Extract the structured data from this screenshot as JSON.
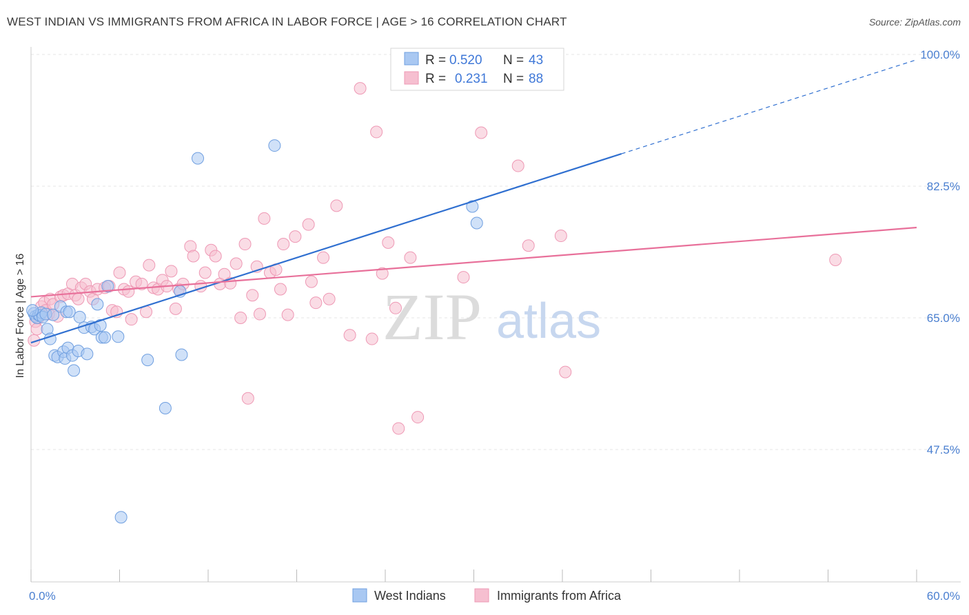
{
  "title": "WEST INDIAN VS IMMIGRANTS FROM AFRICA IN LABOR FORCE | AGE > 16 CORRELATION CHART",
  "source": "Source: ZipAtlas.com",
  "watermark": {
    "zip": "ZIP",
    "atlas": "atlas"
  },
  "colors": {
    "west_indians_fill": "#a9c8f2",
    "west_indians_stroke": "#6f9fe0",
    "west_indians_line": "#2f6fd0",
    "africa_fill": "#f6bfd0",
    "africa_stroke": "#ee98b4",
    "africa_line": "#e8709a",
    "tick_label": "#4a7fd0",
    "grid": "#e6e6e6"
  },
  "legend": {
    "rows": [
      {
        "r_label": "R =",
        "r_value": "0.520",
        "n_label": "N =",
        "n_value": "43"
      },
      {
        "r_label": "R =",
        "r_value": "0.231",
        "n_label": "N =",
        "n_value": "88"
      }
    ]
  },
  "bottom_legend": [
    "West Indians",
    "Immigrants from Africa"
  ],
  "chart_data": {
    "type": "scatter",
    "title": "WEST INDIAN VS IMMIGRANTS FROM AFRICA IN LABOR FORCE | AGE > 16 CORRELATION CHART",
    "xlabel": "",
    "ylabel": "In Labor Force | Age > 16",
    "xlim": [
      0,
      60
    ],
    "ylim": [
      30,
      102
    ],
    "x_tick_labels": [
      "0.0%",
      "60.0%"
    ],
    "y_ticks": [
      47.5,
      65.0,
      82.5,
      100.0
    ],
    "y_tick_labels": [
      "47.5%",
      "65.0%",
      "82.5%",
      "100.0%"
    ],
    "grid": true,
    "legend_position": "top-center",
    "series": [
      {
        "name": "West Indians",
        "points": [
          [
            0.2,
            65.6
          ],
          [
            0.3,
            65.2
          ],
          [
            0.4,
            65.0
          ],
          [
            0.5,
            65.4
          ],
          [
            0.6,
            65.3
          ],
          [
            0.7,
            65.7
          ],
          [
            0.8,
            65.1
          ],
          [
            1.0,
            65.5
          ],
          [
            1.1,
            63.5
          ],
          [
            1.3,
            62.2
          ],
          [
            1.5,
            65.4
          ],
          [
            1.6,
            60.0
          ],
          [
            1.8,
            59.8
          ],
          [
            2.0,
            66.5
          ],
          [
            2.2,
            60.5
          ],
          [
            2.3,
            59.6
          ],
          [
            2.4,
            65.8
          ],
          [
            2.5,
            61.0
          ],
          [
            2.6,
            65.8
          ],
          [
            2.8,
            60.0
          ],
          [
            2.9,
            58.0
          ],
          [
            3.2,
            60.6
          ],
          [
            3.3,
            65.1
          ],
          [
            3.6,
            63.7
          ],
          [
            3.8,
            60.2
          ],
          [
            4.1,
            63.8
          ],
          [
            4.3,
            63.5
          ],
          [
            4.5,
            66.8
          ],
          [
            4.7,
            64.0
          ],
          [
            4.8,
            62.4
          ],
          [
            5.0,
            62.4
          ],
          [
            5.2,
            69.2
          ],
          [
            5.9,
            62.5
          ],
          [
            6.1,
            38.5
          ],
          [
            7.9,
            59.4
          ],
          [
            9.1,
            53.0
          ],
          [
            10.1,
            68.5
          ],
          [
            10.2,
            60.1
          ],
          [
            11.3,
            86.2
          ],
          [
            16.5,
            87.9
          ],
          [
            29.9,
            79.8
          ],
          [
            30.2,
            77.6
          ],
          [
            0.1,
            66.0
          ]
        ]
      },
      {
        "name": "Immigrants from Africa",
        "points": [
          [
            0.2,
            62.0
          ],
          [
            0.3,
            64.5
          ],
          [
            0.4,
            63.5
          ],
          [
            0.5,
            65.0
          ],
          [
            0.7,
            66.5
          ],
          [
            0.9,
            67.0
          ],
          [
            1.0,
            66.0
          ],
          [
            1.2,
            65.5
          ],
          [
            1.3,
            67.5
          ],
          [
            1.5,
            66.8
          ],
          [
            1.8,
            65.2
          ],
          [
            2.0,
            67.8
          ],
          [
            2.2,
            68.0
          ],
          [
            2.5,
            68.2
          ],
          [
            2.8,
            69.5
          ],
          [
            3.0,
            68.0
          ],
          [
            3.2,
            67.5
          ],
          [
            3.4,
            69.0
          ],
          [
            3.7,
            69.5
          ],
          [
            4.0,
            68.5
          ],
          [
            4.2,
            67.5
          ],
          [
            4.5,
            68.8
          ],
          [
            5.0,
            69.0
          ],
          [
            5.3,
            69.2
          ],
          [
            5.5,
            66.0
          ],
          [
            5.8,
            65.8
          ],
          [
            6.0,
            71.0
          ],
          [
            6.3,
            68.8
          ],
          [
            6.6,
            68.5
          ],
          [
            6.8,
            64.8
          ],
          [
            7.1,
            69.8
          ],
          [
            7.5,
            69.5
          ],
          [
            7.8,
            65.8
          ],
          [
            8.0,
            72.0
          ],
          [
            8.3,
            69.0
          ],
          [
            8.6,
            68.8
          ],
          [
            8.9,
            70.0
          ],
          [
            9.2,
            69.2
          ],
          [
            9.5,
            71.2
          ],
          [
            9.8,
            66.2
          ],
          [
            10.0,
            68.8
          ],
          [
            10.3,
            69.5
          ],
          [
            10.8,
            74.5
          ],
          [
            11.0,
            73.2
          ],
          [
            11.5,
            69.2
          ],
          [
            11.8,
            71.0
          ],
          [
            12.2,
            74.0
          ],
          [
            12.5,
            73.2
          ],
          [
            12.8,
            69.5
          ],
          [
            13.1,
            70.8
          ],
          [
            13.5,
            69.6
          ],
          [
            13.9,
            72.2
          ],
          [
            14.2,
            65.0
          ],
          [
            14.5,
            74.8
          ],
          [
            14.7,
            54.3
          ],
          [
            15.0,
            68.0
          ],
          [
            15.3,
            71.8
          ],
          [
            15.5,
            65.5
          ],
          [
            15.8,
            78.2
          ],
          [
            16.2,
            71.0
          ],
          [
            16.6,
            71.4
          ],
          [
            16.9,
            68.8
          ],
          [
            17.1,
            74.8
          ],
          [
            17.4,
            65.4
          ],
          [
            17.9,
            75.8
          ],
          [
            18.8,
            77.4
          ],
          [
            19.0,
            69.8
          ],
          [
            19.3,
            67.0
          ],
          [
            19.8,
            73.0
          ],
          [
            20.2,
            67.5
          ],
          [
            20.7,
            79.9
          ],
          [
            21.6,
            62.7
          ],
          [
            22.3,
            95.5
          ],
          [
            23.1,
            62.2
          ],
          [
            23.4,
            89.7
          ],
          [
            23.8,
            70.9
          ],
          [
            24.2,
            75.0
          ],
          [
            24.7,
            66.3
          ],
          [
            24.9,
            50.3
          ],
          [
            25.7,
            73.0
          ],
          [
            26.2,
            51.8
          ],
          [
            29.3,
            70.4
          ],
          [
            30.5,
            89.6
          ],
          [
            33.0,
            85.2
          ],
          [
            33.7,
            74.6
          ],
          [
            35.9,
            75.9
          ],
          [
            36.2,
            57.8
          ],
          [
            54.5,
            72.7
          ]
        ]
      }
    ],
    "trend_lines": [
      {
        "series": "West Indians",
        "x": [
          0,
          40,
          60
        ],
        "y": [
          61.7,
          86.8,
          99.3
        ],
        "dashed_after_x": 40
      },
      {
        "series": "Immigrants from Africa",
        "x": [
          0,
          60
        ],
        "y": [
          67.8,
          77.0
        ]
      }
    ]
  }
}
